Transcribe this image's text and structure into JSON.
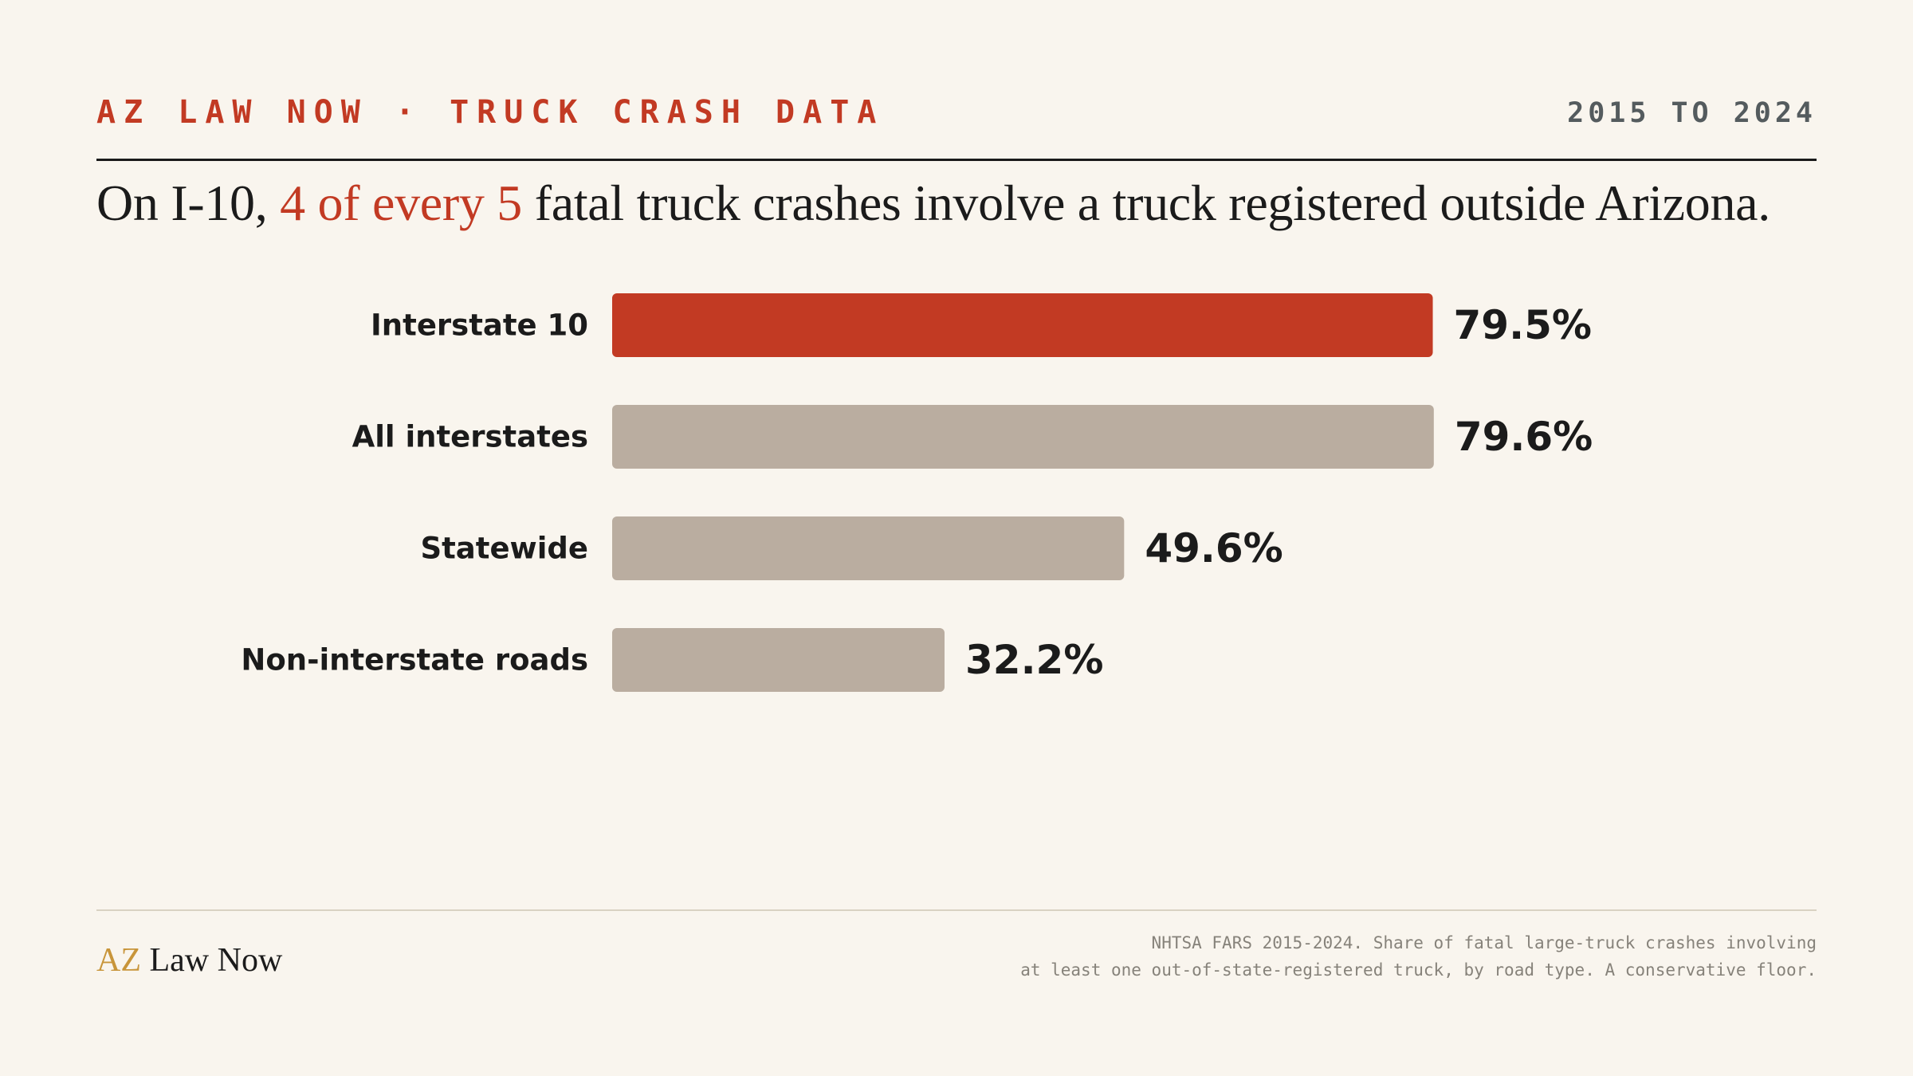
{
  "header": {
    "kicker": "AZ LAW NOW · TRUCK CRASH DATA",
    "date_range": "2015 TO 2024"
  },
  "headline": {
    "before": "On I-10, ",
    "accent": "4 of every 5",
    "after": " fatal truck crashes involve a truck registered outside Arizona."
  },
  "colors": {
    "accent": "#c23a23",
    "bar_default": "#baada0",
    "text": "#1b1b1b",
    "background": "#f9f5ee"
  },
  "chart_data": {
    "type": "bar",
    "orientation": "horizontal",
    "categories": [
      "Interstate 10",
      "All interstates",
      "Statewide",
      "Non-interstate roads"
    ],
    "values": [
      79.5,
      79.6,
      49.6,
      32.2
    ],
    "value_labels": [
      "79.5%",
      "79.6%",
      "49.6%",
      "32.2%"
    ],
    "highlight_index": 0,
    "unit": "%",
    "xlim": [
      0,
      100
    ],
    "grid": false,
    "legend": "none"
  },
  "footer": {
    "brand_prefix": "AZ",
    "brand_rest": " Law Now",
    "source_line1": "NHTSA FARS 2015-2024. Share of fatal large-truck crashes involving",
    "source_line2": "at least one out-of-state-registered truck, by road type. A conservative floor."
  }
}
